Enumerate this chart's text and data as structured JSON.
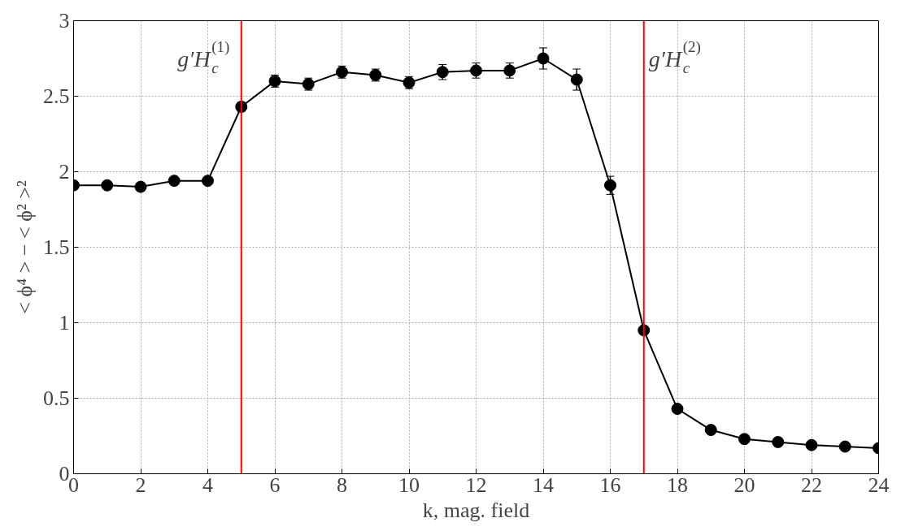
{
  "chart_data": {
    "type": "line",
    "xlabel": "k, mag. field",
    "ylabel": "< ϕ⁴ > − < ϕ² >²",
    "x": [
      0,
      1,
      2,
      3,
      4,
      5,
      6,
      7,
      8,
      9,
      10,
      11,
      12,
      13,
      14,
      15,
      16,
      17,
      18,
      19,
      20,
      21,
      22,
      23,
      24
    ],
    "series": [
      {
        "color": "#000000",
        "values": [
          1.91,
          1.91,
          1.9,
          1.94,
          1.94,
          2.43,
          2.6,
          2.58,
          2.66,
          2.64,
          2.59,
          2.66,
          2.67,
          2.67,
          2.75,
          2.61,
          1.91,
          0.95,
          0.43,
          0.29,
          0.23,
          0.21,
          0.19,
          0.18,
          0.17
        ],
        "errors": [
          0.02,
          0.02,
          0.02,
          0.02,
          0.02,
          0.03,
          0.04,
          0.04,
          0.04,
          0.04,
          0.04,
          0.05,
          0.05,
          0.05,
          0.07,
          0.07,
          0.06,
          0.02,
          0.02,
          0.02,
          0.02,
          0.02,
          0.02,
          0.02,
          0.02
        ]
      }
    ],
    "xlim": [
      0,
      24
    ],
    "xticks": [
      0,
      2,
      4,
      6,
      8,
      10,
      12,
      14,
      16,
      18,
      20,
      22,
      24
    ],
    "ylim": [
      0,
      3
    ],
    "yticks": [
      0,
      0.5,
      1,
      1.5,
      2,
      2.5,
      3
    ],
    "ref_lines": [
      {
        "axis": "x",
        "value": 5,
        "label": "g′H$_{c}$$^{(1)}$",
        "color": "#ff0000"
      },
      {
        "axis": "x",
        "value": 17,
        "label": "g′H$_{c}$$^{(2)}$",
        "color": "#ff0000"
      }
    ],
    "grid": true,
    "marker": "circle",
    "line_style": "solid"
  }
}
